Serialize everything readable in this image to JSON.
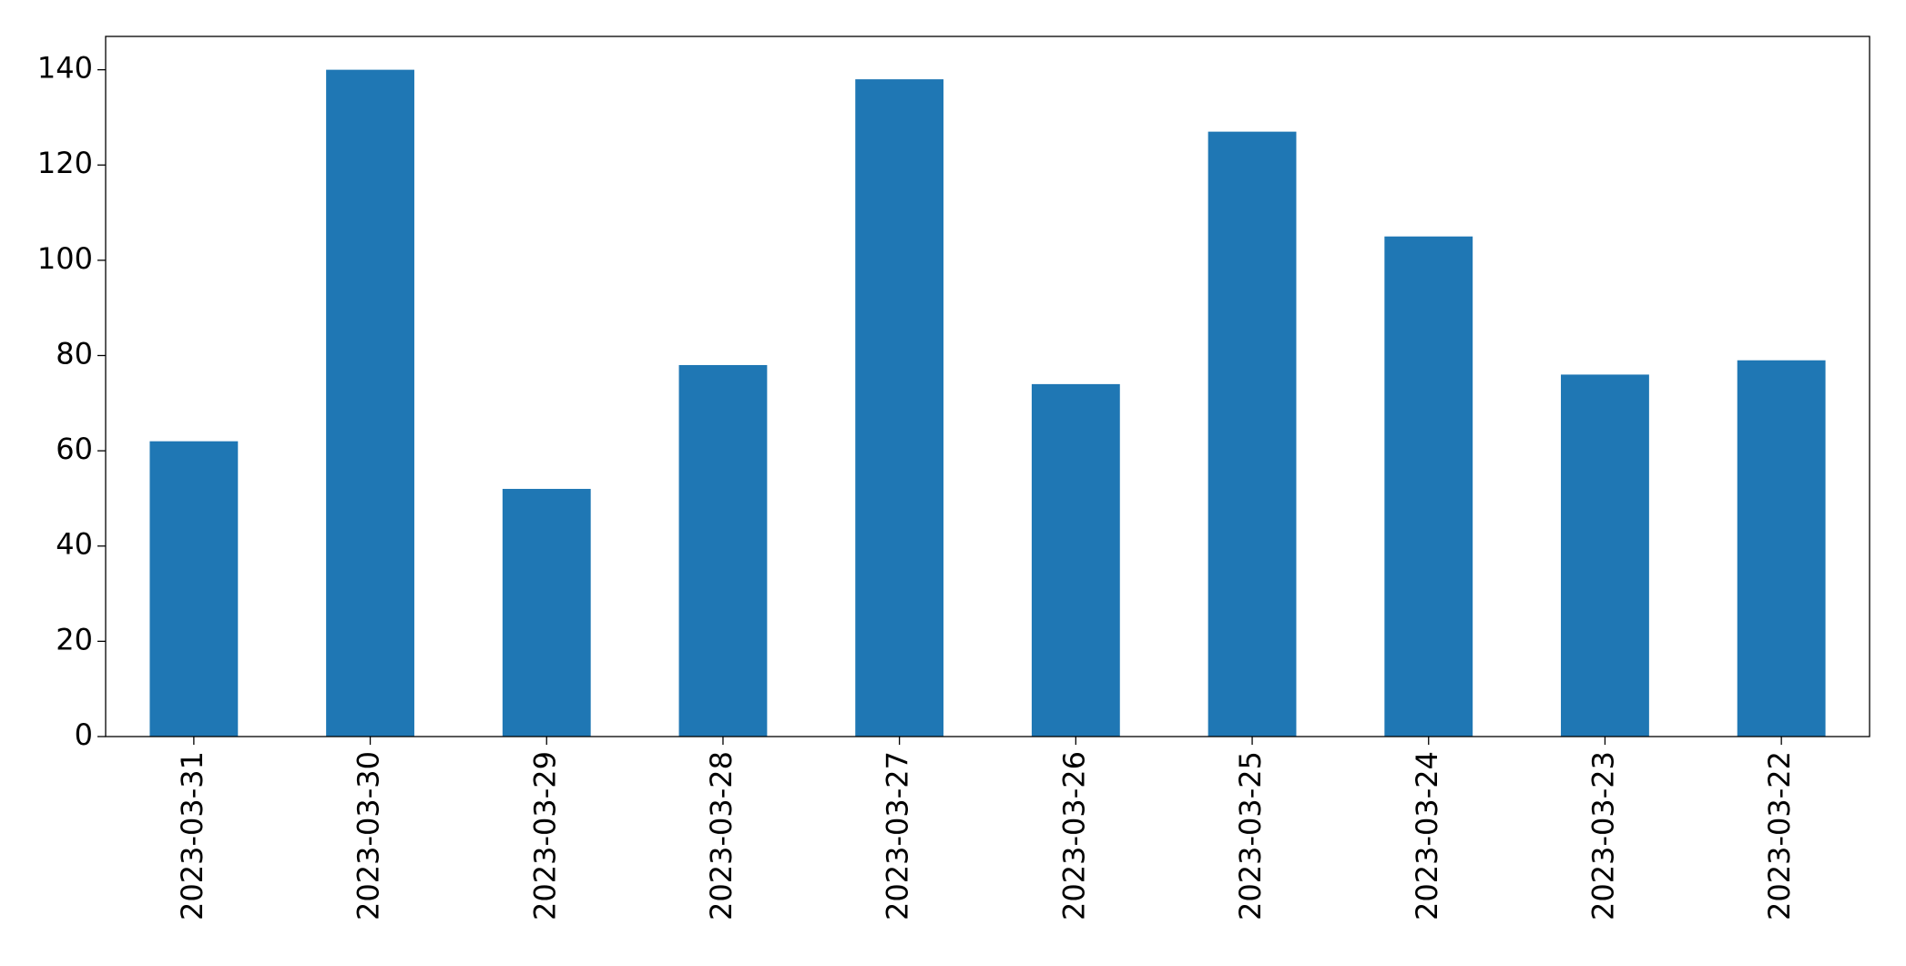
{
  "chart_data": {
    "type": "bar",
    "categories": [
      "2023-03-31",
      "2023-03-30",
      "2023-03-29",
      "2023-03-28",
      "2023-03-27",
      "2023-03-26",
      "2023-03-25",
      "2023-03-24",
      "2023-03-23",
      "2023-03-22"
    ],
    "values": [
      62,
      140,
      52,
      78,
      138,
      74,
      127,
      105,
      76,
      79
    ],
    "color": "#1f77b4",
    "ylim": [
      0,
      147
    ],
    "yticks": [
      0,
      20,
      40,
      60,
      80,
      100,
      120,
      140
    ],
    "grid": false
  }
}
